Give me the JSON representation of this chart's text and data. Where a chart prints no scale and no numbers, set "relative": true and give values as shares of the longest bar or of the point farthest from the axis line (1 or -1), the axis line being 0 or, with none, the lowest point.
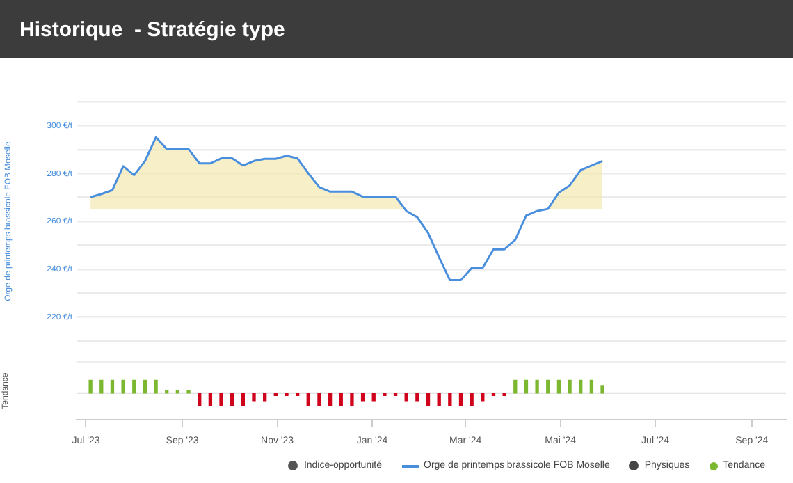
{
  "chart_data": [
    {
      "type": "line",
      "title": "Historique  - Stratégie type",
      "ylabel": "Orge de printemps brassicole FOB Moselle",
      "x": [
        "2023-07-04",
        "2023-07-11",
        "2023-07-18",
        "2023-07-25",
        "2023-08-01",
        "2023-08-08",
        "2023-08-15",
        "2023-08-22",
        "2023-08-29",
        "2023-09-05",
        "2023-09-12",
        "2023-09-19",
        "2023-09-26",
        "2023-10-03",
        "2023-10-10",
        "2023-10-17",
        "2023-10-24",
        "2023-10-31",
        "2023-11-07",
        "2023-11-14",
        "2023-11-21",
        "2023-11-28",
        "2023-12-05",
        "2023-12-12",
        "2023-12-19",
        "2023-12-26",
        "2024-01-02",
        "2024-01-09",
        "2024-01-16",
        "2024-01-23",
        "2024-01-30",
        "2024-02-06",
        "2024-02-13",
        "2024-02-20",
        "2024-02-27",
        "2024-03-05",
        "2024-03-12",
        "2024-03-19",
        "2024-03-26",
        "2024-04-02",
        "2024-04-09",
        "2024-04-16",
        "2024-04-23",
        "2024-04-30",
        "2024-05-07",
        "2024-05-14",
        "2024-05-21",
        "2024-05-28"
      ],
      "series": [
        {
          "name": "Indice-opportunité",
          "type": "scatter",
          "color": "#555555",
          "values": [
            null,
            null,
            null,
            null,
            null,
            null,
            null,
            null,
            null,
            null,
            null,
            null,
            null,
            null,
            null,
            null,
            null,
            null,
            null,
            null,
            null,
            null,
            null,
            null,
            null,
            null,
            null,
            null,
            null,
            null,
            null,
            null,
            null,
            null,
            null,
            null,
            null,
            null,
            null,
            null,
            null,
            null,
            null,
            null,
            null,
            null,
            null,
            null
          ]
        },
        {
          "name": "Orge de printemps brassicole FOB Moselle",
          "color": "#4a8fde",
          "values": [
            270.1,
            271.4,
            273,
            283,
            279.3,
            285.2,
            295.1,
            290.2,
            290.2,
            290.2,
            284.2,
            284.2,
            286.3,
            286.3,
            283.3,
            285.2,
            286.1,
            286.1,
            287.4,
            286.3,
            280,
            274.3,
            272.4,
            272.4,
            272.4,
            270.3,
            270.3,
            270.3,
            270.3,
            264.3,
            261.7,
            255.1,
            245,
            235.4,
            235.4,
            240.5,
            240.5,
            248.3,
            248.3,
            252.3,
            262.4,
            264.3,
            265.2,
            272,
            275,
            281.4,
            283.3,
            285.2
          ],
          "upper": [
            270.1,
            271.4,
            273,
            283,
            279.3,
            285.2,
            295.1,
            290.2,
            290.2,
            290.2,
            284.2,
            284.2,
            286.3,
            286.3,
            283.3,
            285.2,
            286.1,
            286.1,
            287.4,
            286.3,
            280,
            274.3,
            272.4,
            272.4,
            272.4,
            270.3,
            270.3,
            270.3,
            270.3,
            264.3,
            261.7,
            255.1,
            245,
            235.4,
            235.4,
            240.5,
            240.5,
            248.3,
            248.3,
            252.3,
            262.4,
            264.3,
            265.2,
            272,
            275,
            281.4,
            283.3,
            285.2
          ],
          "lower": [
            265,
            265,
            265,
            265,
            265,
            265,
            265,
            265,
            265,
            265,
            265,
            265,
            265,
            265,
            265,
            265,
            265,
            265,
            265,
            265,
            265,
            265,
            265,
            265,
            265,
            265,
            265,
            265,
            265,
            265,
            265,
            265,
            265,
            265,
            265,
            265,
            265,
            265,
            265,
            265,
            265,
            265,
            265,
            265,
            265,
            265,
            265,
            265
          ]
        },
        {
          "name": "Physiques",
          "type": "scatter",
          "color": "#444444",
          "values": [
            null,
            null,
            null,
            null,
            null,
            null,
            null,
            null,
            null,
            null,
            null,
            null,
            null,
            null,
            null,
            null,
            null,
            null,
            null,
            null,
            null,
            null,
            null,
            null,
            null,
            null,
            null,
            null,
            null,
            null,
            null,
            null,
            null,
            null,
            null,
            null,
            null,
            null,
            null,
            null,
            null,
            null,
            null,
            null,
            null,
            null,
            null,
            null
          ]
        }
      ],
      "xlim": [
        "2023-06-25",
        "2024-09-23"
      ],
      "ylim": [
        210,
        310
      ],
      "yticks": [
        {
          "value": 210,
          "label": null
        },
        {
          "value": 220,
          "label": "220 €/t"
        },
        {
          "value": 230,
          "label": null
        },
        {
          "value": 240,
          "label": "240 €/t"
        },
        {
          "value": 250,
          "label": null
        },
        {
          "value": 260,
          "label": "260 €/t"
        },
        {
          "value": 270,
          "label": null
        },
        {
          "value": 280,
          "label": "280 €/t"
        },
        {
          "value": 290,
          "label": null
        },
        {
          "value": 300,
          "label": "300 €/t"
        },
        {
          "value": 310,
          "label": null
        }
      ],
      "tick_labels": "y",
      "grid": "y",
      "legend": "bottom"
    },
    {
      "type": "bar",
      "relative": true,
      "ylabel": "Tendance",
      "x": [
        "2023-07-04",
        "2023-07-11",
        "2023-07-18",
        "2023-07-25",
        "2023-08-01",
        "2023-08-08",
        "2023-08-15",
        "2023-08-22",
        "2023-08-29",
        "2023-09-05",
        "2023-09-12",
        "2023-09-19",
        "2023-09-26",
        "2023-10-03",
        "2023-10-10",
        "2023-10-17",
        "2023-10-24",
        "2023-10-31",
        "2023-11-07",
        "2023-11-14",
        "2023-11-21",
        "2023-11-28",
        "2023-12-05",
        "2023-12-12",
        "2023-12-19",
        "2023-12-26",
        "2024-01-02",
        "2024-01-09",
        "2024-01-16",
        "2024-01-23",
        "2024-01-30",
        "2024-02-06",
        "2024-02-13",
        "2024-02-20",
        "2024-02-27",
        "2024-03-05",
        "2024-03-12",
        "2024-03-19",
        "2024-03-26",
        "2024-04-02",
        "2024-04-09",
        "2024-04-16",
        "2024-04-23",
        "2024-04-30",
        "2024-05-07",
        "2024-05-14",
        "2024-05-21",
        "2024-05-28"
      ],
      "series": [
        {
          "name": "Tendance",
          "color": "#7cb82f",
          "values": [
            1,
            1,
            1,
            1,
            1,
            1,
            1,
            0.2,
            0.2,
            0.2,
            -1,
            -1,
            -1,
            -1,
            -1,
            -0.6,
            -0.6,
            -0.2,
            -0.2,
            -0.2,
            -1,
            -1,
            -1,
            -1,
            -1,
            -0.6,
            -0.6,
            -0.2,
            -0.2,
            -0.6,
            -0.6,
            -1,
            -1,
            -1,
            -1,
            -1,
            -0.6,
            -0.2,
            -0.2,
            1,
            1,
            1,
            1,
            1,
            1,
            1,
            1,
            0.6
          ],
          "colors": [
            "#7cb82f",
            "#7cb82f",
            "#7cb82f",
            "#7cb82f",
            "#7cb82f",
            "#7cb82f",
            "#7cb82f",
            "#7cb82f",
            "#7cb82f",
            "#7cb82f",
            "#d0021b",
            "#d0021b",
            "#d0021b",
            "#d0021b",
            "#d0021b",
            "#d0021b",
            "#d0021b",
            "#d0021b",
            "#d0021b",
            "#d0021b",
            "#d0021b",
            "#d0021b",
            "#d0021b",
            "#d0021b",
            "#d0021b",
            "#d0021b",
            "#d0021b",
            "#d0021b",
            "#d0021b",
            "#d0021b",
            "#d0021b",
            "#d0021b",
            "#d0021b",
            "#d0021b",
            "#d0021b",
            "#d0021b",
            "#d0021b",
            "#d0021b",
            "#d0021b",
            "#7cb82f",
            "#7cb82f",
            "#7cb82f",
            "#7cb82f",
            "#7cb82f",
            "#7cb82f",
            "#7cb82f",
            "#7cb82f",
            "#7cb82f"
          ]
        }
      ],
      "xlim": [
        "2023-06-25",
        "2024-09-23"
      ],
      "xticks": [
        {
          "value": "2023-07-01",
          "label": "Jul '23"
        },
        {
          "value": "2023-09-01",
          "label": "Sep '23"
        },
        {
          "value": "2023-11-01",
          "label": "Nov '23"
        },
        {
          "value": "2024-01-01",
          "label": "Jan '24"
        },
        {
          "value": "2024-03-01",
          "label": "Mar '24"
        },
        {
          "value": "2024-05-01",
          "label": "Mai '24"
        },
        {
          "value": "2024-07-01",
          "label": "Jul '24"
        },
        {
          "value": "2024-09-01",
          "label": "Sep '24"
        }
      ],
      "legend": "bottom"
    }
  ]
}
